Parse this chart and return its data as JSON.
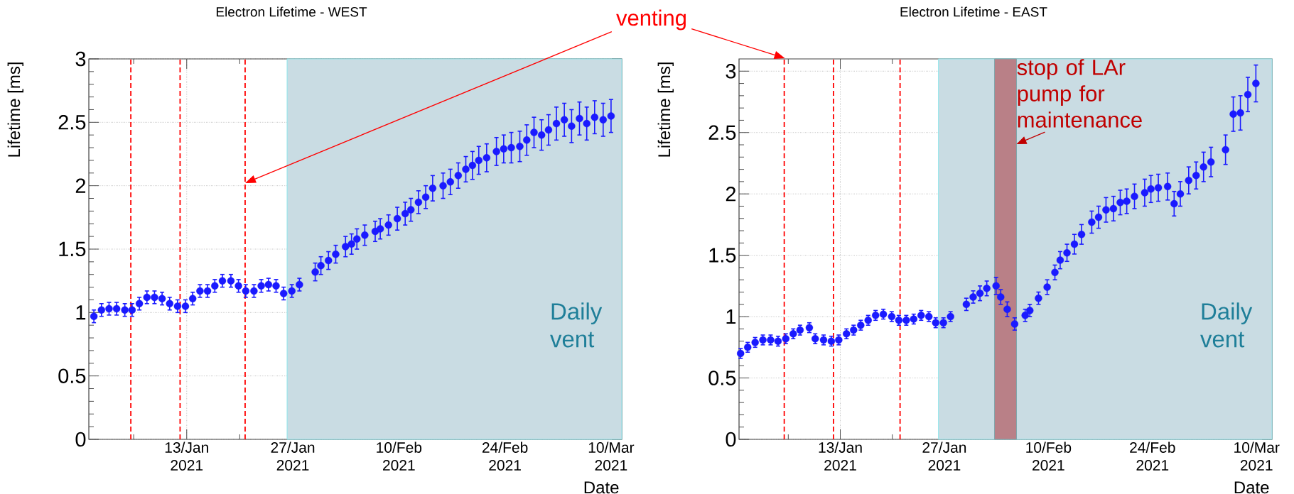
{
  "chart_data": [
    {
      "type": "scatter",
      "title": "Electron Lifetime - WEST",
      "xlabel": "Date",
      "ylabel": "Lifetime [ms]",
      "color": "#1a1aff",
      "marker": "circle",
      "grid": true,
      "xlim": [
        "2020-12-31T02:00",
        "2021-03-11T10:00"
      ],
      "ylim": [
        0,
        3
      ],
      "xticks": [
        {
          "value": "2021-01-06",
          "label": null
        },
        {
          "value": "2021-01-13",
          "label": "13/Jan 2021"
        },
        {
          "value": "2021-01-20",
          "label": null
        },
        {
          "value": "2021-01-27",
          "label": "27/Jan 2021"
        },
        {
          "value": "2021-02-03",
          "label": null
        },
        {
          "value": "2021-02-10",
          "label": "10/Feb 2021"
        },
        {
          "value": "2021-02-17",
          "label": null
        },
        {
          "value": "2021-02-24",
          "label": "24/Feb 2021"
        },
        {
          "value": "2021-03-03",
          "label": null
        },
        {
          "value": "2021-03-10",
          "label": "10/Mar 2021"
        }
      ],
      "yticks": [
        0,
        0.5,
        1,
        1.5,
        2,
        2.5,
        3
      ],
      "x": [
        "2020-12-31T18:00",
        "2021-01-01T18:00",
        "2021-01-02T18:00",
        "2021-01-03T18:00",
        "2021-01-04T20:00",
        "2021-01-05T19:00",
        "2021-01-06T18:00",
        "2021-01-07T18:00",
        "2021-01-08T18:00",
        "2021-01-09T18:00",
        "2021-01-10T18:00",
        "2021-01-11T19:00",
        "2021-01-12T20:00",
        "2021-01-13T19:00",
        "2021-01-14T18:00",
        "2021-01-15T18:00",
        "2021-01-16T17:00",
        "2021-01-17T17:00",
        "2021-01-18T20:00",
        "2021-01-19T20:00",
        "2021-01-20T19:00",
        "2021-01-21T21:00",
        "2021-01-22T20:00",
        "2021-01-23T19:00",
        "2021-01-24T19:00",
        "2021-01-25T19:00",
        "2021-01-26T21:00",
        "2021-01-27T21:00",
        "2021-01-29T23:00",
        "2021-01-30T17:00",
        "2021-01-31T17:00",
        "2021-02-01T16:00",
        "2021-02-02T23:00",
        "2021-02-03T18:00",
        "2021-02-04T11:00",
        "2021-02-05T12:00",
        "2021-02-06T21:00",
        "2021-02-07T13:00",
        "2021-02-08T15:00",
        "2021-02-09T19:00",
        "2021-02-10T20:00",
        "2021-02-11T14:00",
        "2021-02-12T14:00",
        "2021-02-13T13:00",
        "2021-02-14T11:00",
        "2021-02-15T20:00",
        "2021-02-16T19:00",
        "2021-02-17T20:00",
        "2021-02-18T20:00",
        "2021-02-19T17:00",
        "2021-02-20T13:00",
        "2021-02-21T14:00",
        "2021-02-22T21:00",
        "2021-02-23T20:00",
        "2021-02-24T20:00",
        "2021-02-25T23:00",
        "2021-02-26T21:00",
        "2021-02-27T20:00",
        "2021-02-28T20:00",
        "2021-03-01T18:00",
        "2021-03-02T19:00",
        "2021-03-03T20:00",
        "2021-03-04T19:00",
        "2021-03-05T20:00",
        "2021-03-06T19:00",
        "2021-03-07T20:00",
        "2021-03-08T23:00",
        "2021-03-10T00:00"
      ],
      "values": [
        0.97,
        1.02,
        1.03,
        1.03,
        1.02,
        1.02,
        1.07,
        1.12,
        1.12,
        1.11,
        1.07,
        1.05,
        1.05,
        1.11,
        1.17,
        1.17,
        1.21,
        1.25,
        1.25,
        1.21,
        1.17,
        1.17,
        1.21,
        1.22,
        1.21,
        1.15,
        1.17,
        1.22,
        1.32,
        1.37,
        1.41,
        1.46,
        1.52,
        1.54,
        1.58,
        1.61,
        1.64,
        1.66,
        1.69,
        1.74,
        1.78,
        1.81,
        1.87,
        1.91,
        1.98,
        2.0,
        2.03,
        2.08,
        2.13,
        2.16,
        2.2,
        2.22,
        2.27,
        2.29,
        2.3,
        2.31,
        2.36,
        2.42,
        2.4,
        2.44,
        2.49,
        2.52,
        2.47,
        2.53,
        2.49,
        2.54,
        2.52,
        2.55
      ],
      "errors": [
        0.05,
        0.05,
        0.05,
        0.05,
        0.05,
        0.05,
        0.05,
        0.05,
        0.05,
        0.05,
        0.05,
        0.05,
        0.05,
        0.05,
        0.05,
        0.05,
        0.05,
        0.05,
        0.05,
        0.05,
        0.05,
        0.05,
        0.05,
        0.05,
        0.05,
        0.05,
        0.05,
        0.05,
        0.07,
        0.07,
        0.07,
        0.07,
        0.08,
        0.08,
        0.08,
        0.08,
        0.08,
        0.08,
        0.08,
        0.09,
        0.09,
        0.09,
        0.09,
        0.09,
        0.1,
        0.1,
        0.1,
        0.1,
        0.1,
        0.11,
        0.11,
        0.11,
        0.11,
        0.11,
        0.12,
        0.12,
        0.12,
        0.12,
        0.12,
        0.12,
        0.13,
        0.13,
        0.13,
        0.13,
        0.13,
        0.13,
        0.13,
        0.13
      ],
      "ref_lines": [
        {
          "axis": "x",
          "value": "2021-01-05T15:00",
          "color": "#ff0000",
          "line_style": "dashed"
        },
        {
          "axis": "x",
          "value": "2021-01-12T03:00",
          "color": "#ff0000",
          "line_style": "dashed"
        },
        {
          "axis": "x",
          "value": "2021-01-20T17:00",
          "color": "#ff0000",
          "line_style": "dashed"
        }
      ],
      "bands": [
        {
          "axis": "x",
          "from": "2021-01-26T06:00",
          "to": "2021-03-11T10:00",
          "label": "Daily vent",
          "color": "#c9dce3"
        }
      ],
      "annotations": [
        "venting"
      ]
    },
    {
      "type": "scatter",
      "title": "Electron Lifetime - EAST",
      "xlabel": "Date",
      "ylabel": "Lifetime [ms]",
      "color": "#1a1aff",
      "marker": "circle",
      "grid": true,
      "xlim": [
        "2020-12-30T09:00",
        "2021-03-12T02:00"
      ],
      "ylim": [
        0,
        3.1
      ],
      "xticks": [
        {
          "value": "2021-01-06",
          "label": null
        },
        {
          "value": "2021-01-13",
          "label": "13/Jan 2021"
        },
        {
          "value": "2021-01-20",
          "label": null
        },
        {
          "value": "2021-01-27",
          "label": "27/Jan 2021"
        },
        {
          "value": "2021-02-03",
          "label": null
        },
        {
          "value": "2021-02-10",
          "label": "10/Feb 2021"
        },
        {
          "value": "2021-02-17",
          "label": null
        },
        {
          "value": "2021-02-24",
          "label": "24/Feb 2021"
        },
        {
          "value": "2021-03-03",
          "label": null
        },
        {
          "value": "2021-03-10",
          "label": "10/Mar 2021"
        }
      ],
      "yticks": [
        0,
        0.5,
        1,
        1.5,
        2,
        2.5,
        3
      ],
      "x": [
        "2020-12-30T14:00",
        "2020-12-31T13:00",
        "2021-01-01T13:00",
        "2021-01-02T14:00",
        "2021-01-03T15:00",
        "2021-01-04T15:00",
        "2021-01-05T16:00",
        "2021-01-06T16:00",
        "2021-01-07T14:00",
        "2021-01-08T20:00",
        "2021-01-09T15:00",
        "2021-01-10T18:00",
        "2021-01-11T19:00",
        "2021-01-12T19:00",
        "2021-01-13T20:00",
        "2021-01-14T19:00",
        "2021-01-15T18:00",
        "2021-01-16T18:00",
        "2021-01-17T18:00",
        "2021-01-18T19:00",
        "2021-01-19T22:00",
        "2021-01-20T21:00",
        "2021-01-21T21:00",
        "2021-01-22T21:00",
        "2021-01-23T21:00",
        "2021-01-24T22:00",
        "2021-01-25T20:00",
        "2021-01-26T21:00",
        "2021-01-27T20:00",
        "2021-01-29T23:00",
        "2021-01-30T21:00",
        "2021-01-31T19:00",
        "2021-02-01T17:00",
        "2021-02-02T23:00",
        "2021-02-03T14:00",
        "2021-02-04T11:00",
        "2021-02-05T11:00",
        "2021-02-06T21:00",
        "2021-02-07T12:00",
        "2021-02-08T16:00",
        "2021-02-09T20:00",
        "2021-02-10T21:00",
        "2021-02-11T14:00",
        "2021-02-12T12:00",
        "2021-02-13T12:00",
        "2021-02-14T11:00",
        "2021-02-15T20:00",
        "2021-02-16T18:00",
        "2021-02-17T18:00",
        "2021-02-18T18:00",
        "2021-02-19T16:00",
        "2021-02-20T13:00",
        "2021-02-21T14:00",
        "2021-02-22T23:00",
        "2021-02-23T19:00",
        "2021-02-24T19:00",
        "2021-02-26T01:00",
        "2021-02-26T22:00",
        "2021-02-27T18:00",
        "2021-02-28T21:00",
        "2021-03-01T21:00",
        "2021-03-02T21:00",
        "2021-03-03T21:00",
        "2021-03-05T20:00",
        "2021-03-06T21:00",
        "2021-03-07T20:00",
        "2021-03-08T20:00",
        "2021-03-09T22:00"
      ],
      "values": [
        0.7,
        0.75,
        0.79,
        0.81,
        0.81,
        0.8,
        0.82,
        0.86,
        0.89,
        0.91,
        0.82,
        0.81,
        0.8,
        0.81,
        0.86,
        0.89,
        0.93,
        0.97,
        1.01,
        1.02,
        1.0,
        0.97,
        0.97,
        0.98,
        1.01,
        1.0,
        0.95,
        0.95,
        1.0,
        1.1,
        1.16,
        1.19,
        1.23,
        1.25,
        1.16,
        1.06,
        0.94,
        1.01,
        1.05,
        1.15,
        1.24,
        1.36,
        1.46,
        1.52,
        1.59,
        1.67,
        1.77,
        1.81,
        1.87,
        1.88,
        1.93,
        1.94,
        1.98,
        2.01,
        2.04,
        2.05,
        2.06,
        1.92,
        2.0,
        2.11,
        2.15,
        2.22,
        2.26,
        2.36,
        2.65,
        2.66,
        2.81,
        2.9
      ],
      "errors": [
        0.04,
        0.04,
        0.04,
        0.04,
        0.04,
        0.04,
        0.04,
        0.04,
        0.04,
        0.04,
        0.04,
        0.04,
        0.04,
        0.04,
        0.04,
        0.04,
        0.04,
        0.04,
        0.04,
        0.04,
        0.04,
        0.04,
        0.04,
        0.04,
        0.04,
        0.04,
        0.04,
        0.04,
        0.04,
        0.05,
        0.05,
        0.06,
        0.06,
        0.07,
        0.06,
        0.06,
        0.05,
        0.05,
        0.05,
        0.05,
        0.06,
        0.06,
        0.07,
        0.07,
        0.08,
        0.08,
        0.09,
        0.09,
        0.1,
        0.1,
        0.1,
        0.1,
        0.1,
        0.11,
        0.11,
        0.11,
        0.11,
        0.1,
        0.1,
        0.11,
        0.11,
        0.12,
        0.12,
        0.12,
        0.14,
        0.14,
        0.14,
        0.15
      ],
      "ref_lines": [
        {
          "axis": "x",
          "value": "2021-01-05T11:00",
          "color": "#ff0000",
          "line_style": "dashed"
        },
        {
          "axis": "x",
          "value": "2021-01-12T02:00",
          "color": "#ff0000",
          "line_style": "dashed"
        },
        {
          "axis": "x",
          "value": "2021-01-21T01:00",
          "color": "#ff0000",
          "line_style": "dashed"
        }
      ],
      "bands": [
        {
          "axis": "x",
          "from": "2021-01-26T05:00",
          "to": "2021-03-12T02:00",
          "label": "Daily vent",
          "color": "#c9dce3"
        },
        {
          "axis": "x",
          "from": "2021-02-02T18:00",
          "to": "2021-02-05T17:00",
          "label": "stop of LAr pump for maintenance",
          "color": "#b98087"
        }
      ]
    }
  ]
}
